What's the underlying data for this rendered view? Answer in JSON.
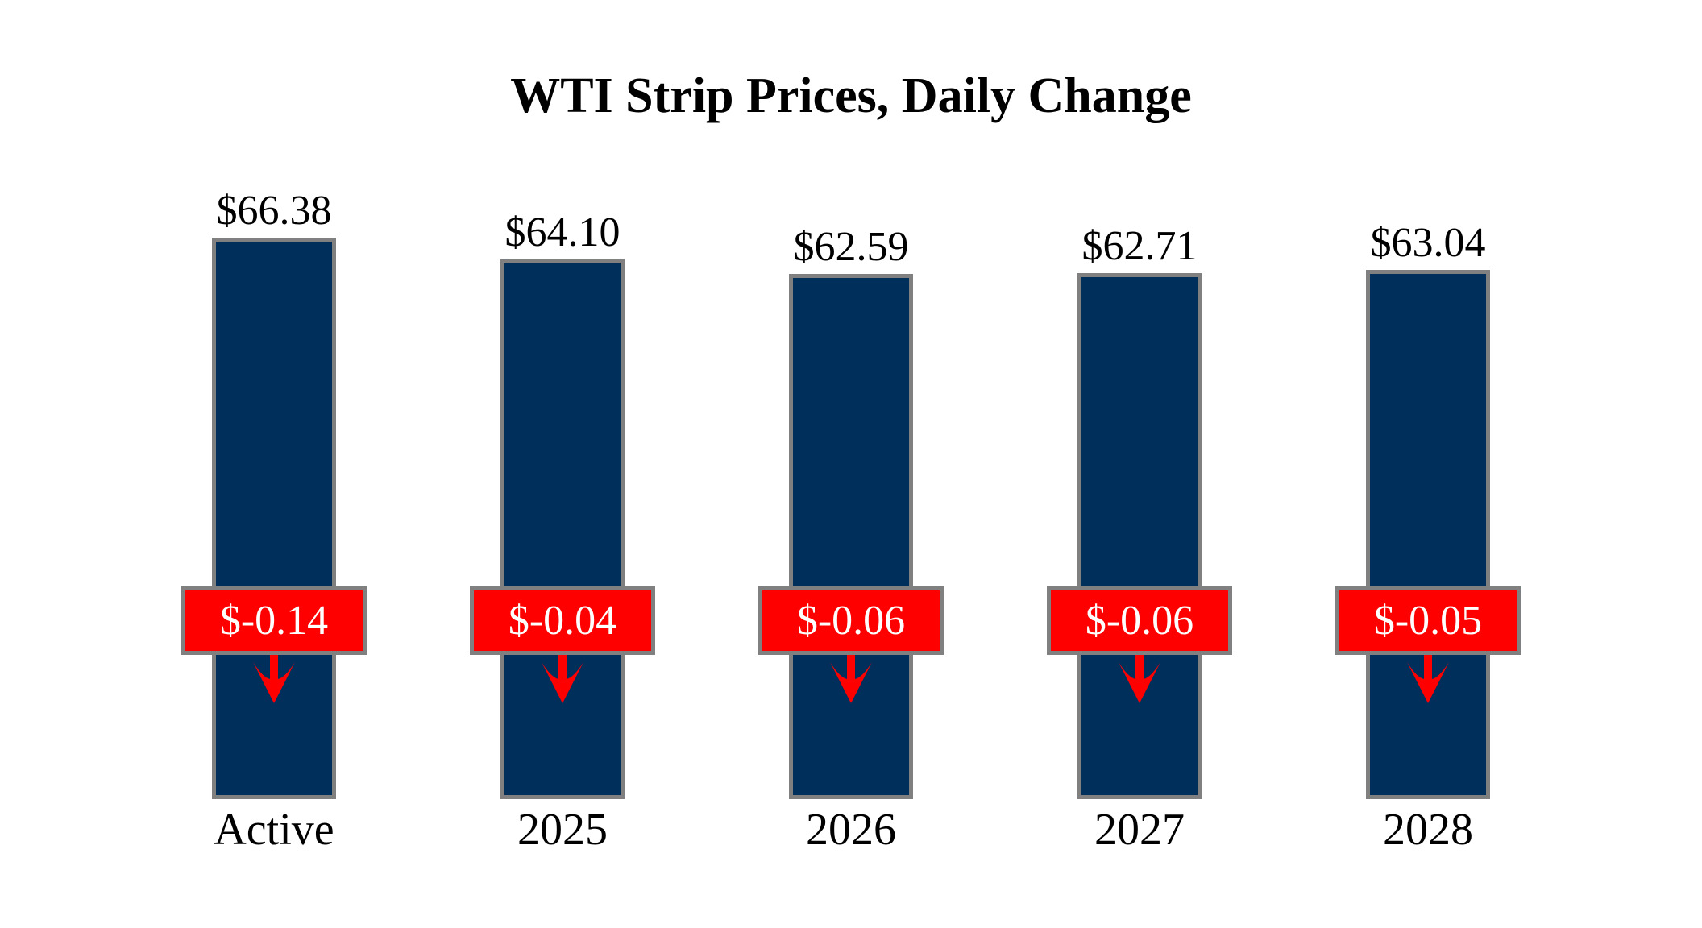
{
  "chart_data": {
    "type": "bar",
    "title": "WTI Strip Prices, Daily Change",
    "categories": [
      "Active",
      "2025",
      "2026",
      "2027",
      "2028"
    ],
    "values": [
      66.38,
      64.1,
      62.59,
      62.71,
      63.04
    ],
    "value_labels": [
      "$66.38",
      "$64.10",
      "$62.59",
      "$62.71",
      "$63.04"
    ],
    "changes": [
      -0.14,
      -0.04,
      -0.06,
      -0.06,
      -0.05
    ],
    "change_labels": [
      "$-0.14",
      "$-0.04",
      "$-0.06",
      "$-0.06",
      "$-0.05"
    ],
    "change_direction": "down",
    "xlabel": "",
    "ylabel": "",
    "ylim": [
      8,
      68
    ],
    "grid": false,
    "legend": "none",
    "colors": {
      "page_bg": "#ffffff",
      "bar_fill": "#002f5c",
      "bar_border": "#808080",
      "badge_fill": "#ff0000",
      "badge_border": "#808080",
      "badge_text": "#ffffff",
      "arrow": "#ff0000",
      "title_text": "#000000",
      "label_text": "#000000"
    }
  }
}
